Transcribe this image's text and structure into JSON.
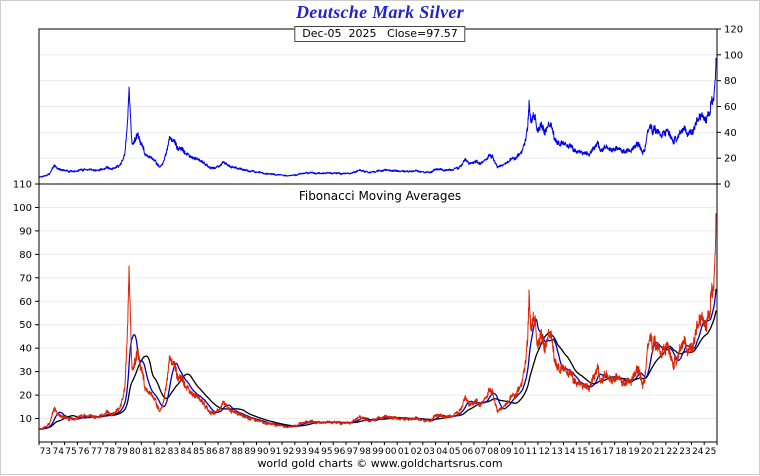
{
  "header": {
    "title": "Deutsche Mark Silver",
    "subtitle": "Dec-05  2025   Close=97.57"
  },
  "footer": "world gold charts © www.goldchartsrus.com",
  "colors": {
    "title": "#2222cc",
    "frame": "#000000",
    "grid": "#ebebeb",
    "top_series": "#0000ee",
    "price": "#dd2200",
    "ma_fast": "#0000bb",
    "ma_slow": "#000000",
    "text": "#000000"
  },
  "chart_data": {
    "type": "line",
    "title": "Deutsche Mark Silver",
    "annotation": "Dec-05 2025 Close=97.57",
    "close": {
      "date": "Dec-05 2025",
      "value": 97.57
    },
    "x_unit": "year",
    "xlim": [
      1973,
      2026
    ],
    "xtick_labels": [
      "73",
      "74",
      "75",
      "76",
      "77",
      "78",
      "79",
      "80",
      "81",
      "82",
      "83",
      "84",
      "85",
      "86",
      "87",
      "88",
      "89",
      "90",
      "91",
      "92",
      "93",
      "94",
      "95",
      "96",
      "97",
      "98",
      "99",
      "00",
      "01",
      "02",
      "03",
      "04",
      "05",
      "06",
      "07",
      "08",
      "09",
      "10",
      "11",
      "12",
      "13",
      "14",
      "15",
      "16",
      "17",
      "18",
      "19",
      "20",
      "21",
      "22",
      "23",
      "24",
      "25"
    ],
    "panels": [
      {
        "name": "dm-silver-price",
        "ylim": [
          0,
          120
        ],
        "yticks": [
          0,
          20,
          40,
          60,
          80,
          100,
          120
        ],
        "yaxis_side": "right",
        "series_name": "Deutsche Mark Silver price",
        "series_color": "#0000ee",
        "grid": true
      },
      {
        "name": "fibonacci-moving-averages",
        "label": "Fibonacci Moving Averages",
        "ylim": [
          0,
          110
        ],
        "yticks": [
          10,
          20,
          30,
          40,
          50,
          60,
          70,
          80,
          90,
          100,
          110
        ],
        "yaxis_side": "left",
        "series_name": "Deutsche Mark Silver price",
        "series_color": "#dd2200",
        "grid": true,
        "moving_averages": [
          {
            "name": "fast-fibonacci-ma",
            "color": "#0000bb",
            "window": 34
          },
          {
            "name": "slow-fibonacci-ma",
            "color": "#000000",
            "window": 89
          }
        ]
      }
    ],
    "price_keypoints": [
      [
        1973.0,
        5.2
      ],
      [
        1973.4,
        6.0
      ],
      [
        1973.8,
        7.5
      ],
      [
        1974.15,
        14.5
      ],
      [
        1974.5,
        11.5
      ],
      [
        1975.0,
        10.2
      ],
      [
        1975.5,
        9.8
      ],
      [
        1976.0,
        10.3
      ],
      [
        1976.5,
        11.2
      ],
      [
        1977.0,
        11.0
      ],
      [
        1977.5,
        10.8
      ],
      [
        1978.0,
        11.5
      ],
      [
        1978.3,
        12.5
      ],
      [
        1978.7,
        12.0
      ],
      [
        1979.0,
        13.0
      ],
      [
        1979.4,
        15.5
      ],
      [
        1979.7,
        22.0
      ],
      [
        1979.92,
        45.0
      ],
      [
        1980.04,
        72.0
      ],
      [
        1980.15,
        52.0
      ],
      [
        1980.28,
        30.0
      ],
      [
        1980.5,
        34.0
      ],
      [
        1980.72,
        40.0
      ],
      [
        1981.0,
        30.0
      ],
      [
        1981.3,
        24.0
      ],
      [
        1981.6,
        21.0
      ],
      [
        1981.9,
        19.0
      ],
      [
        1982.2,
        16.5
      ],
      [
        1982.45,
        12.5
      ],
      [
        1982.7,
        17.0
      ],
      [
        1982.9,
        23.0
      ],
      [
        1983.1,
        31.0
      ],
      [
        1983.25,
        37.0
      ],
      [
        1983.5,
        33.0
      ],
      [
        1983.75,
        29.5
      ],
      [
        1984.0,
        27.5
      ],
      [
        1984.3,
        26.0
      ],
      [
        1984.6,
        23.0
      ],
      [
        1984.9,
        21.0
      ],
      [
        1985.2,
        19.5
      ],
      [
        1985.6,
        18.0
      ],
      [
        1985.9,
        16.5
      ],
      [
        1986.2,
        13.5
      ],
      [
        1986.5,
        12.2
      ],
      [
        1986.9,
        12.8
      ],
      [
        1987.2,
        14.0
      ],
      [
        1987.45,
        17.0
      ],
      [
        1987.7,
        15.0
      ],
      [
        1988.0,
        13.0
      ],
      [
        1988.4,
        12.5
      ],
      [
        1988.8,
        11.5
      ],
      [
        1989.2,
        10.5
      ],
      [
        1989.6,
        10.0
      ],
      [
        1990.0,
        9.5
      ],
      [
        1990.4,
        8.8
      ],
      [
        1990.8,
        7.8
      ],
      [
        1991.2,
        7.5
      ],
      [
        1991.6,
        7.2
      ],
      [
        1992.0,
        7.0
      ],
      [
        1992.5,
        6.3
      ],
      [
        1993.0,
        6.8
      ],
      [
        1993.4,
        7.8
      ],
      [
        1993.8,
        8.2
      ],
      [
        1994.2,
        8.8
      ],
      [
        1994.6,
        8.6
      ],
      [
        1995.0,
        8.0
      ],
      [
        1995.4,
        8.6
      ],
      [
        1995.8,
        8.3
      ],
      [
        1996.2,
        8.4
      ],
      [
        1996.6,
        8.0
      ],
      [
        1997.0,
        8.0
      ],
      [
        1997.4,
        8.3
      ],
      [
        1997.8,
        9.8
      ],
      [
        1998.1,
        11.0
      ],
      [
        1998.5,
        9.6
      ],
      [
        1998.9,
        9.3
      ],
      [
        1999.3,
        9.6
      ],
      [
        1999.7,
        10.2
      ],
      [
        2000.1,
        10.6
      ],
      [
        2000.5,
        10.3
      ],
      [
        2000.9,
        10.0
      ],
      [
        2001.3,
        9.6
      ],
      [
        2001.7,
        9.9
      ],
      [
        2002.1,
        10.0
      ],
      [
        2002.5,
        10.4
      ],
      [
        2002.9,
        9.6
      ],
      [
        2003.2,
        9.0
      ],
      [
        2003.6,
        9.4
      ],
      [
        2004.0,
        10.8
      ],
      [
        2004.3,
        11.6
      ],
      [
        2004.6,
        10.4
      ],
      [
        2005.0,
        10.8
      ],
      [
        2005.4,
        11.2
      ],
      [
        2005.8,
        12.6
      ],
      [
        2006.1,
        15.5
      ],
      [
        2006.35,
        19.0
      ],
      [
        2006.6,
        15.8
      ],
      [
        2006.9,
        16.8
      ],
      [
        2007.2,
        17.5
      ],
      [
        2007.5,
        16.5
      ],
      [
        2007.8,
        17.5
      ],
      [
        2008.0,
        19.5
      ],
      [
        2008.2,
        24.0
      ],
      [
        2008.45,
        21.0
      ],
      [
        2008.65,
        17.0
      ],
      [
        2008.85,
        13.0
      ],
      [
        2009.1,
        14.8
      ],
      [
        2009.4,
        16.0
      ],
      [
        2009.7,
        17.8
      ],
      [
        2010.0,
        20.0
      ],
      [
        2010.3,
        21.0
      ],
      [
        2010.6,
        23.5
      ],
      [
        2010.85,
        28.0
      ],
      [
        2011.05,
        36.0
      ],
      [
        2011.2,
        45.0
      ],
      [
        2011.32,
        63.0
      ],
      [
        2011.45,
        47.0
      ],
      [
        2011.6,
        54.0
      ],
      [
        2011.78,
        51.0
      ],
      [
        2011.95,
        41.0
      ],
      [
        2012.15,
        45.5
      ],
      [
        2012.4,
        43.0
      ],
      [
        2012.65,
        40.0
      ],
      [
        2012.85,
        46.0
      ],
      [
        2013.05,
        44.0
      ],
      [
        2013.3,
        35.0
      ],
      [
        2013.55,
        30.5
      ],
      [
        2013.8,
        32.0
      ],
      [
        2014.1,
        31.0
      ],
      [
        2014.4,
        29.5
      ],
      [
        2014.7,
        27.5
      ],
      [
        2015.0,
        26.0
      ],
      [
        2015.3,
        25.0
      ],
      [
        2015.6,
        23.8
      ],
      [
        2015.95,
        22.8
      ],
      [
        2016.2,
        25.5
      ],
      [
        2016.5,
        29.5
      ],
      [
        2016.65,
        32.0
      ],
      [
        2016.9,
        27.0
      ],
      [
        2017.2,
        28.5
      ],
      [
        2017.5,
        28.0
      ],
      [
        2017.8,
        27.0
      ],
      [
        2018.1,
        27.5
      ],
      [
        2018.45,
        26.5
      ],
      [
        2018.8,
        24.5
      ],
      [
        2019.1,
        25.5
      ],
      [
        2019.4,
        26.5
      ],
      [
        2019.7,
        31.0
      ],
      [
        2019.95,
        29.0
      ],
      [
        2020.2,
        25.0
      ],
      [
        2020.4,
        28.0
      ],
      [
        2020.6,
        40.0
      ],
      [
        2020.78,
        44.0
      ],
      [
        2020.95,
        41.0
      ],
      [
        2021.15,
        43.5
      ],
      [
        2021.4,
        39.0
      ],
      [
        2021.65,
        37.5
      ],
      [
        2021.9,
        38.5
      ],
      [
        2022.1,
        41.0
      ],
      [
        2022.35,
        37.0
      ],
      [
        2022.6,
        32.5
      ],
      [
        2022.8,
        34.5
      ],
      [
        2023.0,
        38.5
      ],
      [
        2023.2,
        40.5
      ],
      [
        2023.45,
        42.0
      ],
      [
        2023.65,
        38.0
      ],
      [
        2023.85,
        40.0
      ],
      [
        2024.05,
        41.0
      ],
      [
        2024.25,
        44.0
      ],
      [
        2024.45,
        49.0
      ],
      [
        2024.65,
        51.0
      ],
      [
        2024.85,
        53.0
      ],
      [
        2025.0,
        49.5
      ],
      [
        2025.15,
        50.5
      ],
      [
        2025.3,
        52.0
      ],
      [
        2025.45,
        56.0
      ],
      [
        2025.6,
        62.0
      ],
      [
        2025.72,
        66.0
      ],
      [
        2025.82,
        73.0
      ],
      [
        2025.88,
        80.0
      ],
      [
        2025.92,
        97.57
      ]
    ]
  }
}
